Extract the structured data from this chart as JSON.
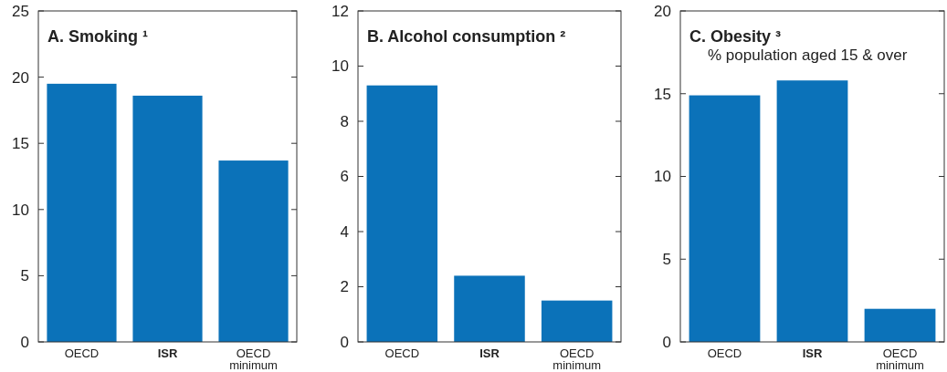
{
  "chart_data": [
    {
      "type": "bar",
      "title": "A. Smoking ¹",
      "categories": [
        "OECD",
        "ISR",
        "OECD minimum"
      ],
      "values": [
        19.5,
        18.6,
        13.7
      ],
      "color": "#0b72b9",
      "ylim": [
        0,
        25
      ],
      "yticks": [
        0,
        5,
        10,
        15,
        20,
        25
      ]
    },
    {
      "type": "bar",
      "title": "B. Alcohol consumption ²",
      "categories": [
        "OECD",
        "ISR",
        "OECD minimum"
      ],
      "values": [
        9.3,
        2.4,
        1.5
      ],
      "color": "#0b72b9",
      "ylim": [
        0,
        12
      ],
      "yticks": [
        0,
        2,
        4,
        6,
        8,
        10,
        12
      ]
    },
    {
      "type": "bar",
      "title": "C. Obesity ³",
      "subtitle": "% population aged 15 & over",
      "categories": [
        "OECD",
        "ISR",
        "OECD minimum"
      ],
      "values": [
        14.9,
        15.8,
        2.0
      ],
      "color": "#0b72b9",
      "ylim": [
        0,
        20
      ],
      "yticks": [
        0,
        5,
        10,
        15,
        20
      ]
    }
  ]
}
